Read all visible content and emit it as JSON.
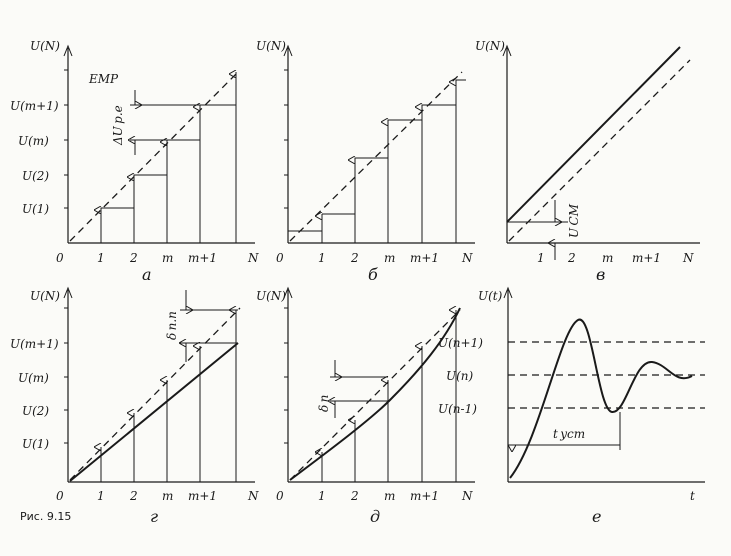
{
  "panels": {
    "a": {
      "label": "а",
      "y_axis": "U(N)",
      "x_axis": "N",
      "origin": "0",
      "y_ticks": [
        "U(m+1)",
        "U(m)",
        "U(2)",
        "U(1)"
      ],
      "x_ticks": [
        "1",
        "2",
        "m",
        "m+1"
      ],
      "annotation_emr": "EMP",
      "annotation_delta": "ΔU p.e"
    },
    "b": {
      "label": "б",
      "y_axis": "U(N)",
      "x_axis": "N",
      "origin": "0",
      "x_ticks": [
        "1",
        "2",
        "m",
        "m+1"
      ]
    },
    "v": {
      "label": "в",
      "y_axis": "U(N)",
      "x_axis": "N",
      "x_ticks": [
        "1",
        "2",
        "m",
        "m+1"
      ],
      "annotation": "U CM"
    },
    "g": {
      "label": "г",
      "y_axis": "U(N)",
      "x_axis": "N",
      "origin": "0",
      "y_ticks": [
        "U(m+1)",
        "U(m)",
        "U(2)",
        "U(1)"
      ],
      "x_ticks": [
        "1",
        "2",
        "m",
        "m+1"
      ],
      "annotation": "δ n.n"
    },
    "d": {
      "label": "д",
      "y_axis": "U(N)",
      "x_axis": "N",
      "origin": "0",
      "x_ticks": [
        "1",
        "2",
        "m",
        "m+1"
      ],
      "annotation": "δ n"
    },
    "e": {
      "label": "е",
      "y_axis": "U(t)",
      "x_axis": "t",
      "y_ticks": [
        "U(n+1)",
        "U(n)",
        "U(n-1)"
      ],
      "annotation": "t ycm"
    }
  },
  "caption": "Рис. 9.15"
}
